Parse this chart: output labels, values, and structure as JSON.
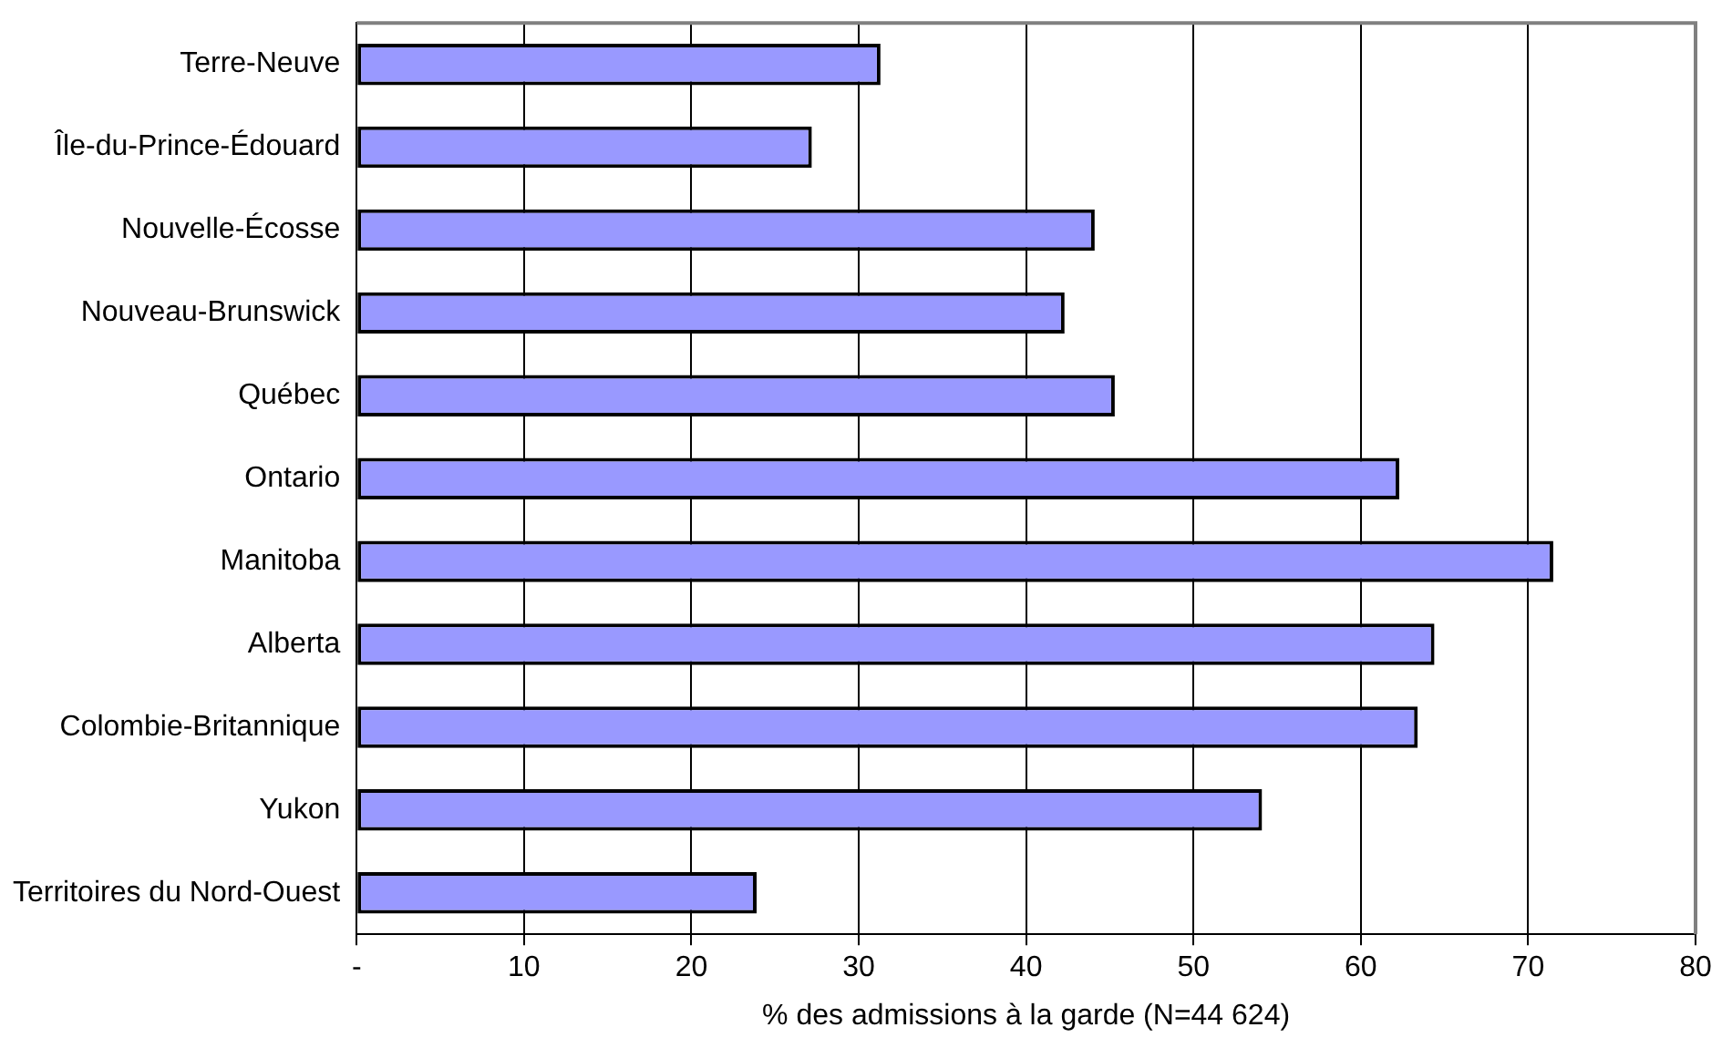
{
  "chart_data": {
    "type": "bar",
    "orientation": "horizontal",
    "xlabel": "% des admissions à la garde (N=44 624)",
    "categories": [
      "Terre-Neuve",
      "Île-du-Prince-Édouard",
      "Nouvelle-Écosse",
      "Nouveau-Brunswick",
      "Québec",
      "Ontario",
      "Manitoba",
      "Alberta",
      "Colombie-Britannique",
      "Yukon",
      "Territoires du Nord-Ouest"
    ],
    "values": [
      31.3,
      27.2,
      44.1,
      42.3,
      45.3,
      62.3,
      71.5,
      64.4,
      63.4,
      54.1,
      23.9
    ],
    "color": "#9999ff",
    "xlim": [
      0,
      80
    ],
    "xticks": [
      {
        "value": 0,
        "label": "-"
      },
      10,
      20,
      30,
      40,
      50,
      60,
      70,
      80
    ],
    "grid": "x",
    "legend": false
  }
}
